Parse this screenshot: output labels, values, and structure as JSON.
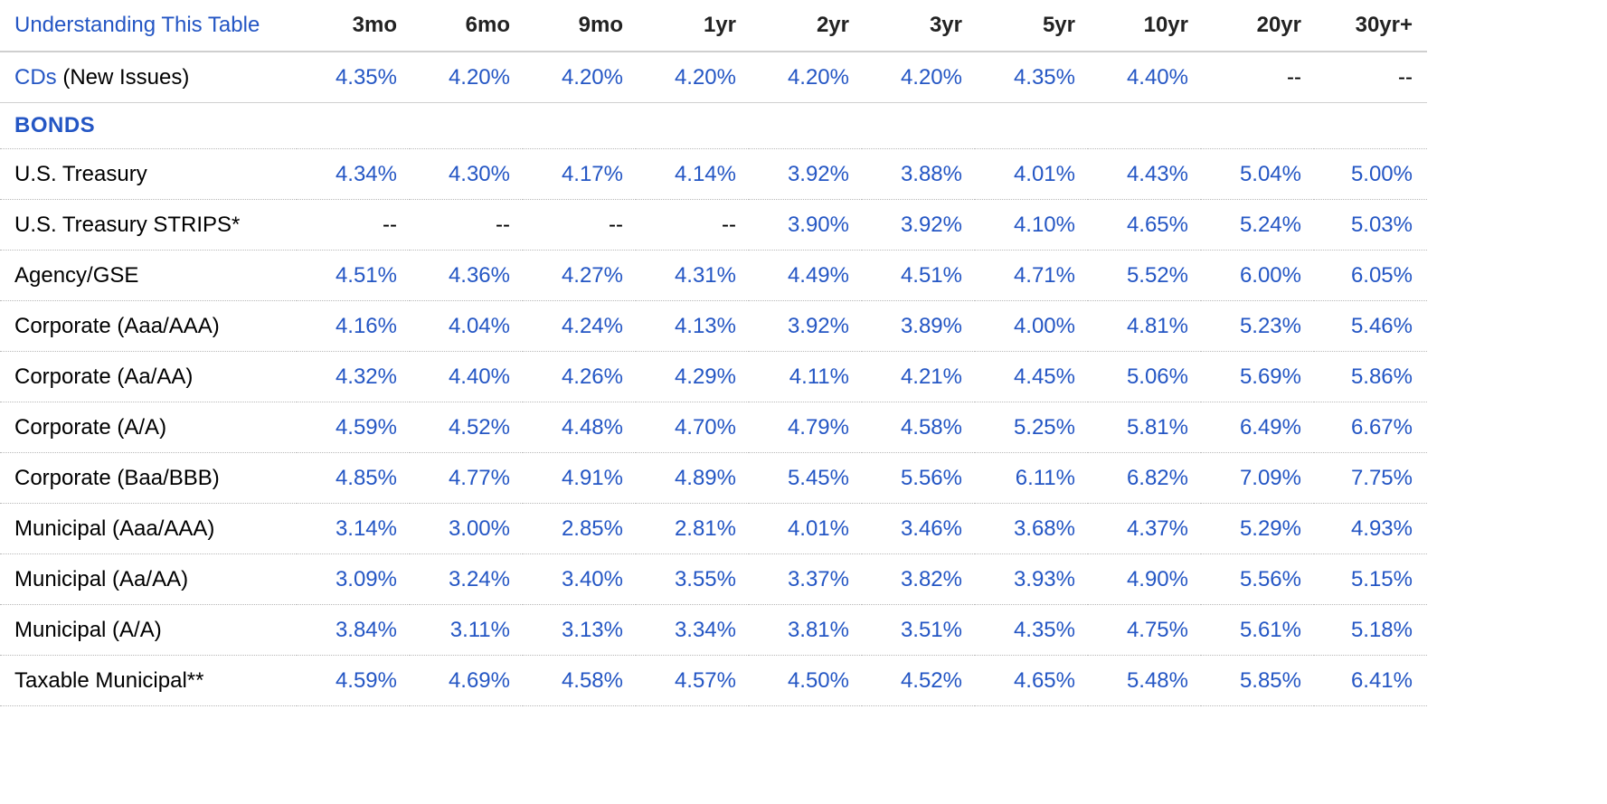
{
  "table": {
    "header_link": "Understanding This Table",
    "columns": [
      "3mo",
      "6mo",
      "9mo",
      "1yr",
      "2yr",
      "3yr",
      "5yr",
      "10yr",
      "20yr",
      "30yr+"
    ],
    "cd_row": {
      "link": "CDs",
      "suffix": " (New Issues)",
      "values": [
        "4.35%",
        "4.20%",
        "4.20%",
        "4.20%",
        "4.20%",
        "4.20%",
        "4.35%",
        "4.40%",
        "--",
        "--"
      ]
    },
    "section_bonds": "BONDS",
    "rows": [
      {
        "label": "U.S. Treasury",
        "values": [
          "4.34%",
          "4.30%",
          "4.17%",
          "4.14%",
          "3.92%",
          "3.88%",
          "4.01%",
          "4.43%",
          "5.04%",
          "5.00%"
        ]
      },
      {
        "label": "U.S. Treasury STRIPS*",
        "values": [
          "--",
          "--",
          "--",
          "--",
          "3.90%",
          "3.92%",
          "4.10%",
          "4.65%",
          "5.24%",
          "5.03%"
        ]
      },
      {
        "label": "Agency/GSE",
        "values": [
          "4.51%",
          "4.36%",
          "4.27%",
          "4.31%",
          "4.49%",
          "4.51%",
          "4.71%",
          "5.52%",
          "6.00%",
          "6.05%"
        ]
      },
      {
        "label": "Corporate (Aaa/AAA)",
        "values": [
          "4.16%",
          "4.04%",
          "4.24%",
          "4.13%",
          "3.92%",
          "3.89%",
          "4.00%",
          "4.81%",
          "5.23%",
          "5.46%"
        ]
      },
      {
        "label": "Corporate (Aa/AA)",
        "values": [
          "4.32%",
          "4.40%",
          "4.26%",
          "4.29%",
          "4.11%",
          "4.21%",
          "4.45%",
          "5.06%",
          "5.69%",
          "5.86%"
        ]
      },
      {
        "label": "Corporate (A/A)",
        "values": [
          "4.59%",
          "4.52%",
          "4.48%",
          "4.70%",
          "4.79%",
          "4.58%",
          "5.25%",
          "5.81%",
          "6.49%",
          "6.67%"
        ]
      },
      {
        "label": "Corporate (Baa/BBB)",
        "values": [
          "4.85%",
          "4.77%",
          "4.91%",
          "4.89%",
          "5.45%",
          "5.56%",
          "6.11%",
          "6.82%",
          "7.09%",
          "7.75%"
        ]
      },
      {
        "label": "Municipal (Aaa/AAA)",
        "values": [
          "3.14%",
          "3.00%",
          "2.85%",
          "2.81%",
          "4.01%",
          "3.46%",
          "3.68%",
          "4.37%",
          "5.29%",
          "4.93%"
        ]
      },
      {
        "label": "Municipal (Aa/AA)",
        "values": [
          "3.09%",
          "3.24%",
          "3.40%",
          "3.55%",
          "3.37%",
          "3.82%",
          "3.93%",
          "4.90%",
          "5.56%",
          "5.15%"
        ]
      },
      {
        "label": "Municipal (A/A)",
        "values": [
          "3.84%",
          "3.11%",
          "3.13%",
          "3.34%",
          "3.81%",
          "3.51%",
          "4.35%",
          "4.75%",
          "5.61%",
          "5.18%"
        ]
      },
      {
        "label": "Taxable Municipal**",
        "values": [
          "4.59%",
          "4.69%",
          "4.58%",
          "4.57%",
          "4.50%",
          "4.52%",
          "4.65%",
          "5.48%",
          "5.85%",
          "6.41%"
        ]
      }
    ]
  },
  "colors": {
    "link": "#2456c4",
    "value": "#2456c4",
    "text": "#000000",
    "rule": "#cfcfcf"
  }
}
